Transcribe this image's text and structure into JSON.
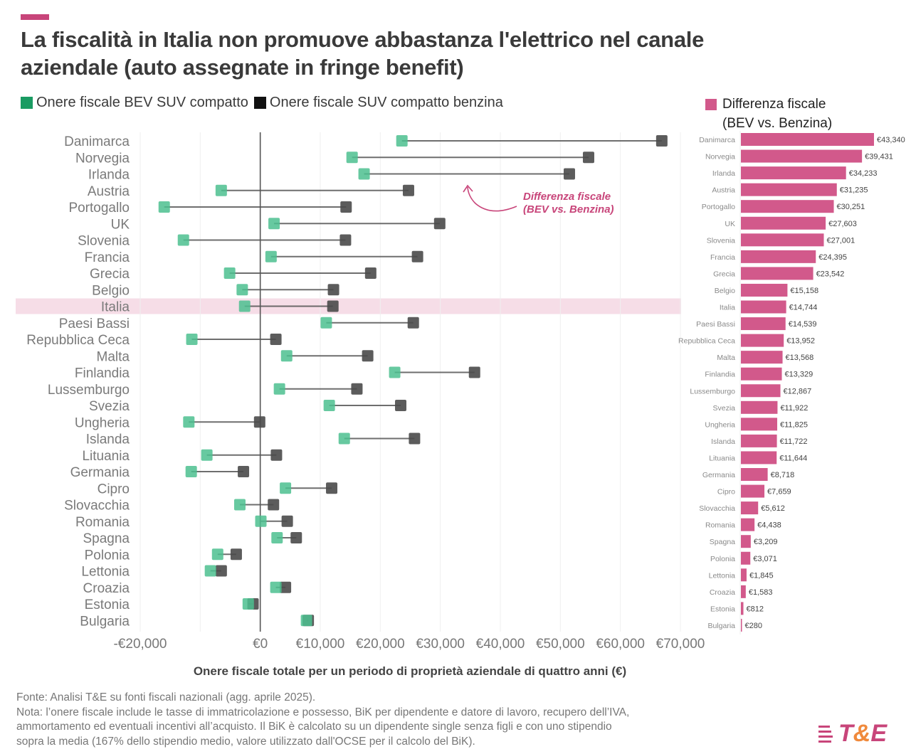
{
  "header": {
    "title_line1": "La fiscalità in Italia non promuove abbastanza l'elettrico nel canale",
    "title_line2": "aziendale (auto assegnate in fringe benefit)"
  },
  "legend": {
    "bev_label": "Onere fiscale BEV SUV compatto",
    "petrol_label": "Onere fiscale SUV compatto benzina",
    "diff_label_line1": "Differenza fiscale",
    "diff_label_line2": "(BEV vs. Benzina)"
  },
  "colors": {
    "bev": "#4cbf8f",
    "petrol": "#4a4a4a",
    "diff_bar": "#d2598b",
    "accent": "#c8457a",
    "highlight_row": "#f6dde7",
    "legend_bev": "#1a9b62",
    "legend_petrol": "#111111"
  },
  "annotation": {
    "line1": "Differenza fiscale",
    "line2": "(BEV vs. Benzina)"
  },
  "highlight_country": "Italia",
  "chart_data": [
    {
      "type": "dumbbell",
      "title": "",
      "xlabel": "Onere fiscale totale per un periodo di proprietà aziendale di quattro anni (€)",
      "ylabel": "",
      "xlim": [
        -20000,
        70000
      ],
      "xticks": [
        -20000,
        0,
        10000,
        20000,
        30000,
        40000,
        50000,
        60000,
        70000
      ],
      "xtick_labels": [
        "-€20,000",
        "€0",
        "€10,000",
        "€20,000",
        "€30,000",
        "€40,000",
        "€50,000",
        "€60,000",
        "€70,000"
      ],
      "grid": true,
      "categories": [
        "Danimarca",
        "Norvegia",
        "Irlanda",
        "Austria",
        "Portogallo",
        "UK",
        "Slovenia",
        "Francia",
        "Grecia",
        "Belgio",
        "Italia",
        "Paesi Bassi",
        "Repubblica Ceca",
        "Malta",
        "Finlandia",
        "Lussemburgo",
        "Svezia",
        "Ungheria",
        "Islanda",
        "Lituania",
        "Germania",
        "Cipro",
        "Slovacchia",
        "Romania",
        "Spagna",
        "Polonia",
        "Lettonia",
        "Croazia",
        "Estonia",
        "Bulgaria"
      ],
      "series": [
        {
          "name": "Onere fiscale BEV SUV compatto",
          "values": [
            23600,
            15300,
            17300,
            -6500,
            -16000,
            2300,
            -12800,
            1800,
            -5100,
            -3000,
            -2600,
            11000,
            -11400,
            4400,
            22400,
            3200,
            11500,
            -11900,
            14000,
            -8900,
            -11500,
            4200,
            -3400,
            100,
            2800,
            -7100,
            -8300,
            2600,
            -2000,
            7700
          ]
        },
        {
          "name": "Onere fiscale SUV compatto benzina",
          "values": [
            66900,
            54700,
            51500,
            24700,
            14300,
            29900,
            14200,
            26200,
            18400,
            12200,
            12100,
            25500,
            2600,
            17900,
            35700,
            16100,
            23400,
            -100,
            25700,
            2700,
            -2800,
            11900,
            2200,
            4500,
            6000,
            -4000,
            -6500,
            4200,
            -1200,
            8000
          ]
        }
      ]
    },
    {
      "type": "bar",
      "title": "Differenza fiscale (BEV vs. Benzina)",
      "orientation": "horizontal",
      "categories": [
        "Danimarca",
        "Norvegia",
        "Irlanda",
        "Austria",
        "Portogallo",
        "UK",
        "Slovenia",
        "Francia",
        "Grecia",
        "Belgio",
        "Italia",
        "Paesi Bassi",
        "Repubblica Ceca",
        "Malta",
        "Finlandia",
        "Lussemburgo",
        "Svezia",
        "Ungheria",
        "Islanda",
        "Lituania",
        "Germania",
        "Cipro",
        "Slovacchia",
        "Romania",
        "Spagna",
        "Polonia",
        "Lettonia",
        "Croazia",
        "Estonia",
        "Bulgaria"
      ],
      "values": [
        43340,
        39431,
        34233,
        31235,
        30251,
        27603,
        27001,
        24395,
        23542,
        15158,
        14744,
        14539,
        13952,
        13568,
        13329,
        12867,
        11922,
        11825,
        11722,
        11644,
        8718,
        7659,
        5612,
        4438,
        3209,
        3071,
        1845,
        1583,
        812,
        280
      ],
      "value_labels": [
        "€43,340",
        "€39,431",
        "€34,233",
        "€31,235",
        "€30,251",
        "€27,603",
        "€27,001",
        "€24,395",
        "€23,542",
        "€15,158",
        "€14,744",
        "€14,539",
        "€13,952",
        "€13,568",
        "€13,329",
        "€12,867",
        "€11,922",
        "€11,825",
        "€11,722",
        "€11,644",
        "€8,718",
        "€7,659",
        "€5,612",
        "€4,438",
        "€3,209",
        "€3,071",
        "€1,845",
        "€1,583",
        "€812",
        "€280"
      ],
      "xlim": [
        0,
        43340
      ]
    }
  ],
  "footer": {
    "source": "Fonte: Analisi T&E su fonti fiscali nazionali (agg. aprile 2025).",
    "note_line1": "Nota: l’onere fiscale include le tasse di immatricolazione e possesso, BiK per dipendente e datore di lavoro, recupero dell’IVA,",
    "note_line2": "ammortamento ed eventuali incentivi all’acquisto. Il BiK è calcolato su un dipendente single senza figli e con uno stipendio",
    "note_line3": "sopra la media (167% dello stipendio medio, valore utilizzato dall'OCSE per il calcolo del BiK)."
  },
  "logo": {
    "text_t": "T",
    "text_amp": "&",
    "text_e": "E"
  }
}
